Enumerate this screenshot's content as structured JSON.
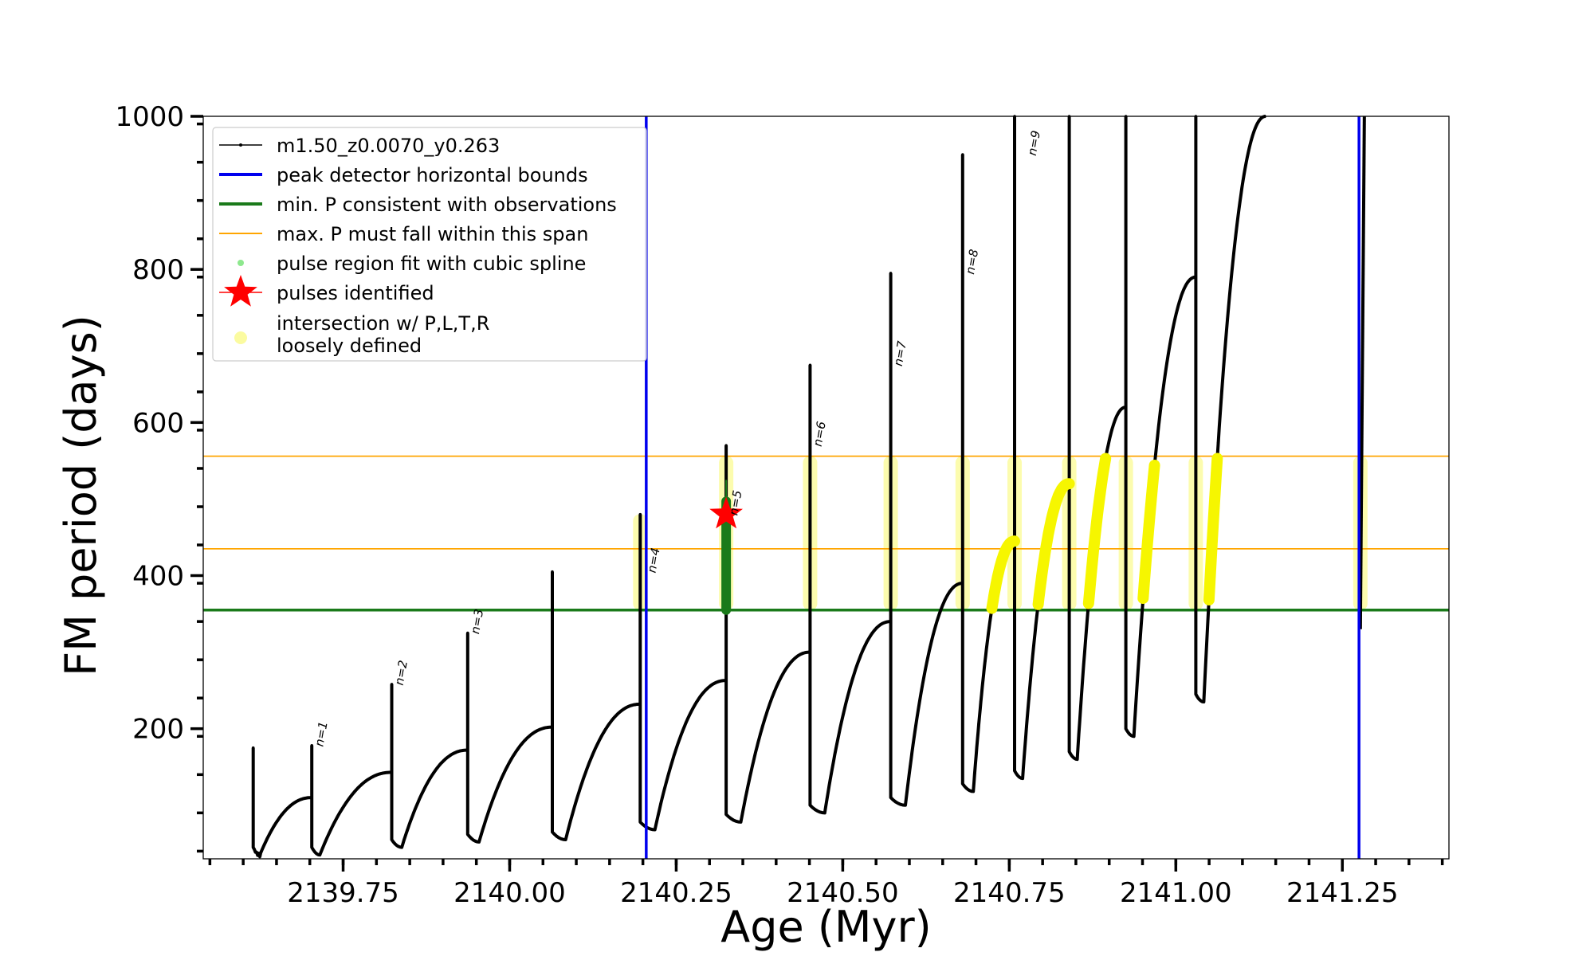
{
  "chart_data": {
    "type": "line",
    "xlabel": "Age (Myr)",
    "ylabel": "FM period (days)",
    "xlim": [
      2139.54,
      2141.41
    ],
    "ylim": [
      30,
      1000
    ],
    "xticks": [
      2139.75,
      2140.0,
      2140.25,
      2140.5,
      2140.75,
      2141.0,
      2141.25
    ],
    "xtick_labels": [
      "2139.75",
      "2140.00",
      "2140.25",
      "2140.50",
      "2140.75",
      "2141.00",
      "2141.25"
    ],
    "yticks": [
      200,
      400,
      600,
      800,
      1000
    ],
    "ytick_labels": [
      "200",
      "400",
      "600",
      "800",
      "1000"
    ],
    "grid": false,
    "legend_position": "top-left",
    "legend": [
      {
        "label": "m1.50_z0.0070_y0.263",
        "kind": "line-dots",
        "color": "#000000"
      },
      {
        "label": "peak detector horizontal bounds",
        "kind": "line",
        "color": "#0000ee"
      },
      {
        "label": "min. P consistent with observations",
        "kind": "line",
        "color": "#1a7a1a"
      },
      {
        "label": "max. P must fall within this span",
        "kind": "line",
        "color": "#ffa500"
      },
      {
        "label": "pulse region fit with cubic spline",
        "kind": "dot",
        "color": "#8ee88e"
      },
      {
        "label": "pulses identified",
        "kind": "star",
        "color": "#ff0000"
      },
      {
        "label": [
          "intersection w/ P,L,T,R",
          "loosely defined"
        ],
        "kind": "dot",
        "color": "#fbfba0"
      }
    ],
    "vertical_bounds": [
      2140.205,
      2141.275
    ],
    "min_period": 355,
    "max_period_span": [
      435,
      556
    ],
    "colors": {
      "track": "#000000",
      "bounds": "#0000ee",
      "min_period": "#1a7a1a",
      "max_period": "#ffa500",
      "spline": "#1a7a1a",
      "star": "#ff0000",
      "intersection_loose": "#fbfba0",
      "intersection_strong": "#f6f600"
    },
    "series": [
      {
        "name": "m1.50_z0.0070_y0.263",
        "pulses": [
          {
            "t0": 2139.615,
            "trough": 35,
            "trough_dt": 0.01,
            "rise_end": 2139.703,
            "plateau": 110,
            "peak": 175,
            "decline_dt": 0.0
          },
          {
            "t0": 2139.703,
            "trough": 35,
            "trough_dt": 0.012,
            "rise_end": 2139.823,
            "plateau": 143,
            "peak": 178,
            "decline_dt": 0.0
          },
          {
            "t0": 2139.823,
            "trough": 45,
            "trough_dt": 0.015,
            "rise_end": 2139.937,
            "plateau": 172,
            "peak": 258,
            "decline_dt": 0.0
          },
          {
            "t0": 2139.937,
            "trough": 52,
            "trough_dt": 0.017,
            "rise_end": 2140.064,
            "plateau": 202,
            "peak": 325,
            "decline_dt": 0.0
          },
          {
            "t0": 2140.064,
            "trough": 55,
            "trough_dt": 0.02,
            "rise_end": 2140.196,
            "plateau": 232,
            "peak": 405,
            "decline_dt": 0.0
          },
          {
            "t0": 2140.196,
            "trough": 68,
            "trough_dt": 0.022,
            "rise_end": 2140.325,
            "plateau": 263,
            "peak": 480,
            "decline_dt": 0.0
          },
          {
            "t0": 2140.325,
            "trough": 78,
            "trough_dt": 0.022,
            "rise_end": 2140.451,
            "plateau": 300,
            "peak": 570,
            "decline_dt": 0.0
          },
          {
            "t0": 2140.451,
            "trough": 90,
            "trough_dt": 0.022,
            "rise_end": 2140.572,
            "plateau": 340,
            "peak": 675,
            "decline_dt": 0.0
          },
          {
            "t0": 2140.572,
            "trough": 100,
            "trough_dt": 0.022,
            "rise_end": 2140.68,
            "plateau": 390,
            "peak": 795,
            "decline_dt": 0.0
          },
          {
            "t0": 2140.68,
            "trough": 118,
            "trough_dt": 0.016,
            "rise_end": 2140.758,
            "plateau": 445,
            "peak": 950,
            "decline_dt": 0.0
          },
          {
            "t0": 2140.758,
            "trough": 135,
            "trough_dt": 0.012,
            "rise_end": 2140.84,
            "plateau": 520,
            "peak": 1000,
            "decline_dt": 0.0
          },
          {
            "t0": 2140.84,
            "trough": 160,
            "trough_dt": 0.012,
            "rise_end": 2140.925,
            "plateau": 620,
            "peak": 1000,
            "decline_dt": 0.0
          },
          {
            "t0": 2140.925,
            "trough": 190,
            "trough_dt": 0.012,
            "rise_end": 2141.03,
            "plateau": 790,
            "peak": 1000,
            "decline_dt": 0.0
          },
          {
            "t0": 2141.03,
            "trough": 235,
            "trough_dt": 0.012,
            "rise_end": 2141.135,
            "plateau": 1000,
            "peak": 1000,
            "decline_dt": 0.0
          }
        ]
      }
    ],
    "pulse_labels": [
      {
        "text": "n=1",
        "x": 2139.703,
        "y": 178
      },
      {
        "text": "n=2",
        "x": 2139.823,
        "y": 258
      },
      {
        "text": "n=3",
        "x": 2139.937,
        "y": 325
      },
      {
        "text": "n=4",
        "x": 2140.202,
        "y": 405
      },
      {
        "text": "n=5",
        "x": 2140.325,
        "y": 480
      },
      {
        "text": "n=6",
        "x": 2140.451,
        "y": 570
      },
      {
        "text": "n=7",
        "x": 2140.572,
        "y": 675
      },
      {
        "text": "n=8",
        "x": 2140.68,
        "y": 795
      },
      {
        "text": "n=9",
        "x": 2140.773,
        "y": 950
      }
    ],
    "pulses_identified": [
      {
        "x": 2140.325,
        "y": 480
      }
    ],
    "spline_region": {
      "x": 2140.325,
      "y_range": [
        355,
        497
      ]
    }
  }
}
